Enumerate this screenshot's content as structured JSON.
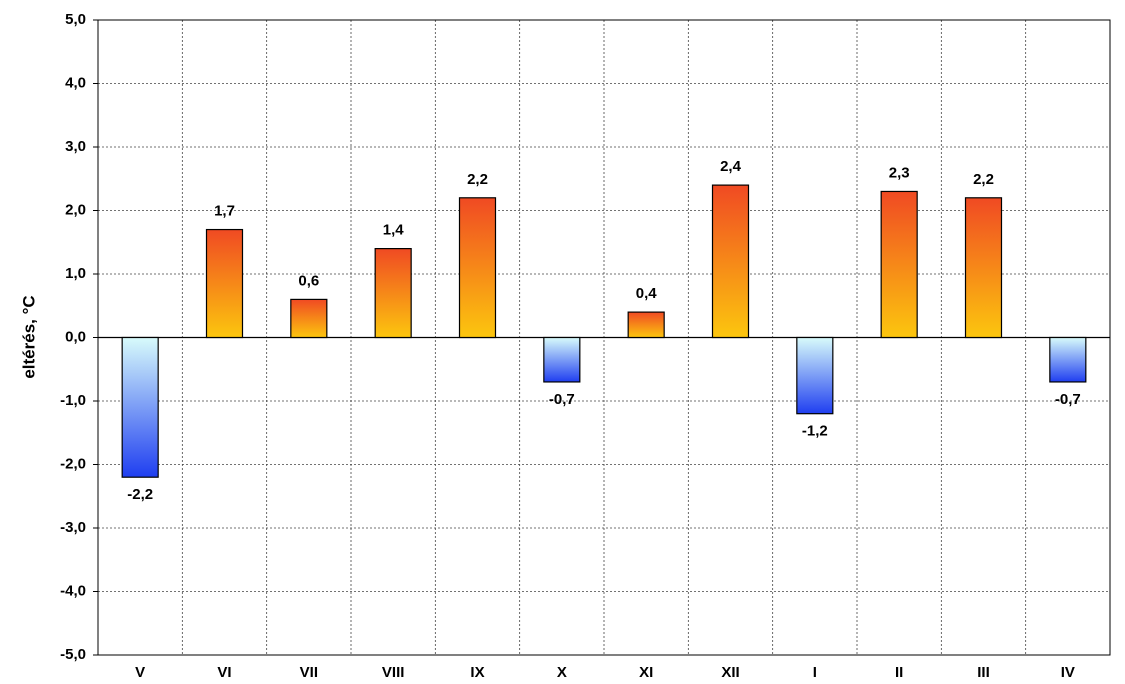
{
  "chart_data": {
    "type": "bar",
    "y_label": "eltérés, °C",
    "categories": [
      "V",
      "VI",
      "VII",
      "VIII",
      "IX",
      "X",
      "XI",
      "XII",
      "I",
      "II",
      "III",
      "IV"
    ],
    "values": [
      -2.2,
      1.7,
      0.6,
      1.4,
      2.2,
      -0.7,
      0.4,
      2.4,
      -1.2,
      2.3,
      2.2,
      -0.7
    ],
    "value_labels": [
      "-2,2",
      "1,7",
      "0,6",
      "1,4",
      "2,2",
      "-0,7",
      "0,4",
      "2,4",
      "-1,2",
      "2,3",
      "2,2",
      "-0,7"
    ],
    "positive_colors": [
      "#f04a23",
      "#fcc60e"
    ],
    "negative_colors": [
      "#d8fbfb",
      "#1f3ef0"
    ],
    "ylim": [
      -5,
      5
    ],
    "yticks": [
      {
        "value": -5,
        "label": "-5,0"
      },
      {
        "value": -4,
        "label": "-4,0"
      },
      {
        "value": -3,
        "label": "-3,0"
      },
      {
        "value": -2,
        "label": "-2,0"
      },
      {
        "value": -1,
        "label": "-1,0"
      },
      {
        "value": 0,
        "label": "0,0"
      },
      {
        "value": 1,
        "label": "1,0"
      },
      {
        "value": 2,
        "label": "2,0"
      },
      {
        "value": 3,
        "label": "3,0"
      },
      {
        "value": 4,
        "label": "4,0"
      },
      {
        "value": 5,
        "label": "5,0"
      }
    ],
    "grid": true
  }
}
